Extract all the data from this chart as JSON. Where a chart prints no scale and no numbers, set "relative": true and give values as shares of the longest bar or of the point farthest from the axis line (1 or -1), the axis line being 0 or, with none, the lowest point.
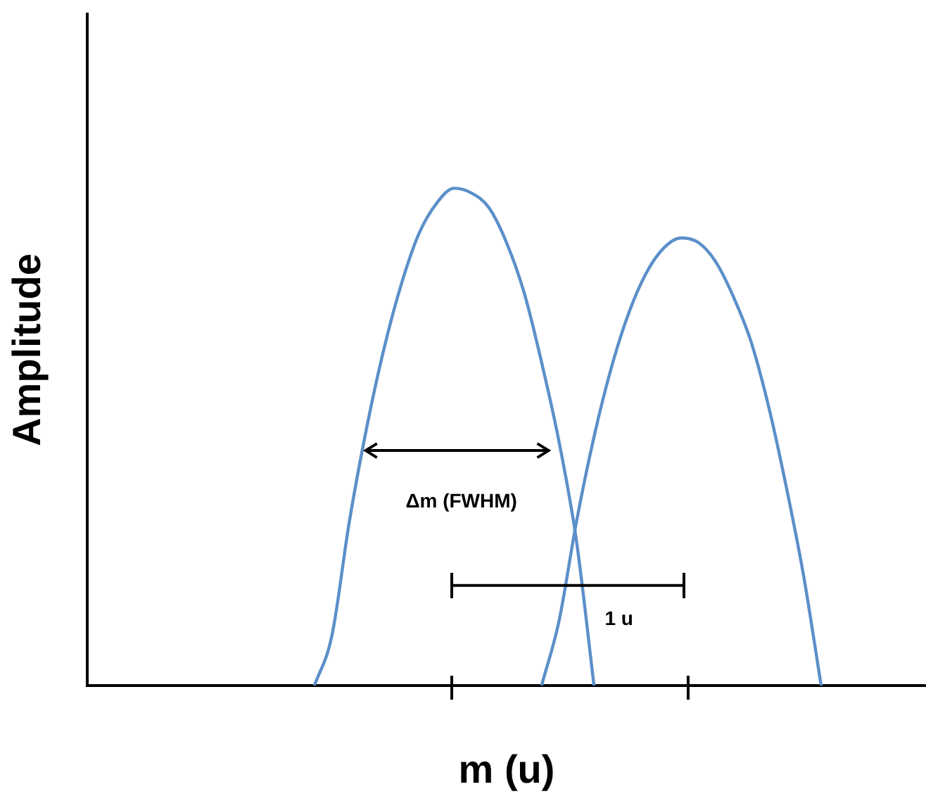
{
  "chart_data": {
    "type": "line",
    "relative": true,
    "xlabel": "m (u)",
    "ylabel": "Amplitude",
    "legend": false,
    "grid": false,
    "categories": [
      null,
      null,
      null,
      null,
      null,
      null,
      null,
      null,
      null,
      null,
      null,
      null,
      null,
      null,
      null,
      null,
      null,
      null,
      null,
      null,
      null,
      null,
      null,
      null,
      null,
      null,
      null,
      null,
      null,
      null,
      null,
      null,
      null,
      null,
      null,
      null,
      null,
      null,
      null,
      null,
      null,
      null,
      null,
      null,
      null,
      null,
      null,
      null,
      null
    ],
    "series": [
      {
        "color": "#5b8fc9",
        "values": [
          null,
          null,
          null,
          null,
          null,
          null,
          null,
          null,
          null,
          null,
          null,
          null,
          null,
          0,
          0.1,
          0.33,
          0.52,
          0.68,
          0.81,
          0.91,
          0.97,
          1,
          0.99,
          0.96,
          0.89,
          0.79,
          0.65,
          0.49,
          0.29,
          0,
          null,
          null,
          null,
          null,
          null,
          null,
          null,
          null,
          null,
          null,
          null,
          null,
          null,
          null,
          null,
          null,
          null,
          null,
          null
        ]
      },
      {
        "color": "#5b8fc9",
        "values": [
          null,
          null,
          null,
          null,
          null,
          null,
          null,
          null,
          null,
          null,
          null,
          null,
          null,
          null,
          null,
          null,
          null,
          null,
          null,
          null,
          null,
          null,
          null,
          null,
          null,
          null,
          0,
          0.13,
          0.33,
          0.5,
          0.64,
          0.75,
          0.83,
          0.88,
          0.9,
          0.89,
          0.85,
          0.78,
          0.69,
          0.56,
          0.4,
          0.22,
          0,
          null,
          null,
          null,
          null,
          null,
          null
        ]
      }
    ],
    "annotations": [
      "Δm (FWHM)",
      "1 u"
    ]
  }
}
